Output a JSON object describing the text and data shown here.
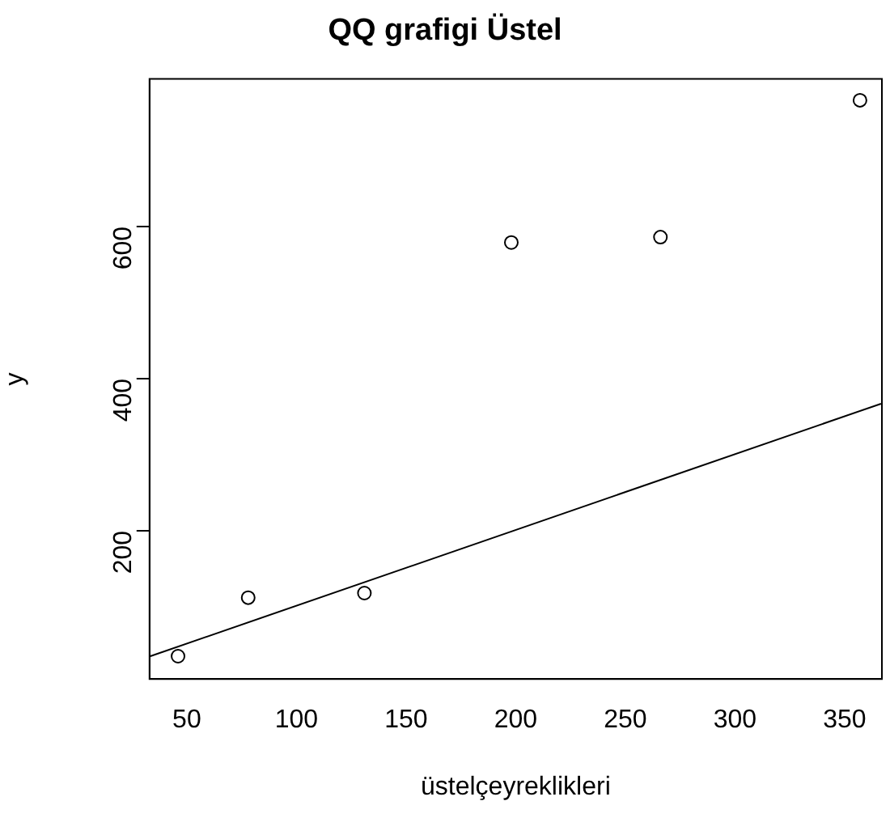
{
  "chart_data": {
    "type": "scatter",
    "title": "QQ grafigi Üstel",
    "xlabel": "üstelçeyreklikleri",
    "ylabel": "y",
    "xlim": [
      33,
      367
    ],
    "ylim": [
      5,
      794
    ],
    "xticks": [
      50,
      100,
      150,
      200,
      250,
      300,
      350
    ],
    "yticks": [
      200,
      400,
      600
    ],
    "grid": false,
    "legend": false,
    "series": [
      {
        "type": "scatter",
        "marker": "circle",
        "color": "#000000",
        "x": [
          46,
          78,
          131,
          198,
          266,
          357
        ],
        "values": [
          35,
          112,
          118,
          579,
          586,
          766
        ]
      },
      {
        "type": "line",
        "marker": "none",
        "color": "#000000",
        "x": [
          33.4,
          366.6
        ],
        "values": [
          35,
          367
        ]
      }
    ]
  }
}
